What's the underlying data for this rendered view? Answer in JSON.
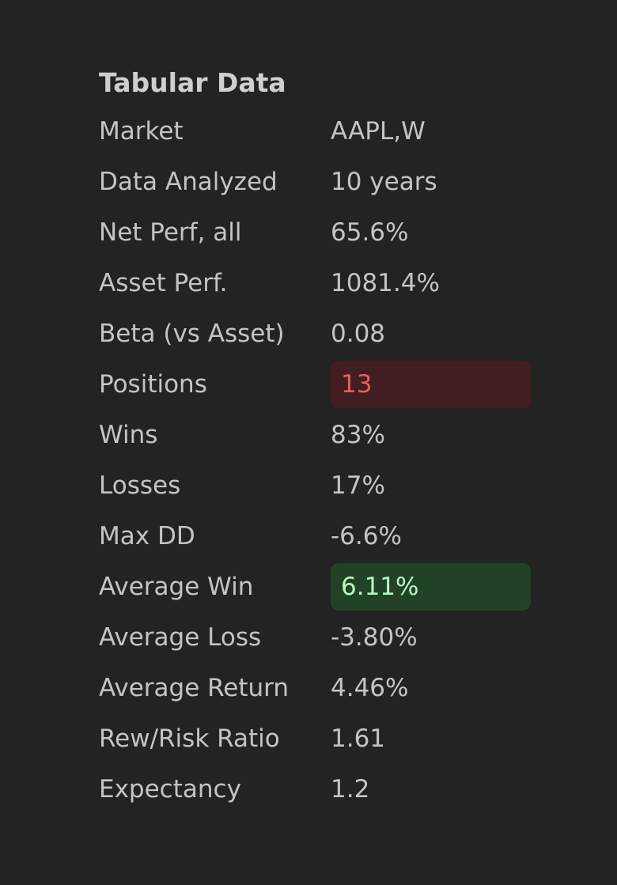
{
  "colors": {
    "background": "#232323",
    "text": "#c4c4c4",
    "badge_red_bg": "#421e22",
    "badge_red_text": "#ea5c5c",
    "badge_green_bg": "#214226",
    "badge_green_text": "#b9f5bf"
  },
  "table": {
    "title": "Tabular Data",
    "rows": [
      {
        "label": "Market",
        "value": "AAPL,W"
      },
      {
        "label": "Data Analyzed",
        "value": "10 years"
      },
      {
        "label": "Net Perf, all",
        "value": "65.6%"
      },
      {
        "label": "Asset Perf.",
        "value": "1081.4%"
      },
      {
        "label": "Beta (vs Asset)",
        "value": "0.08"
      },
      {
        "label": "Positions",
        "value": "13",
        "highlight": "red"
      },
      {
        "label": "Wins",
        "value": "83%"
      },
      {
        "label": "Losses",
        "value": "17%"
      },
      {
        "label": "Max DD",
        "value": "-6.6%"
      },
      {
        "label": "Average Win",
        "value": "6.11%",
        "highlight": "green"
      },
      {
        "label": "Average Loss",
        "value": "-3.80%"
      },
      {
        "label": "Average Return",
        "value": "4.46%"
      },
      {
        "label": "Rew/Risk Ratio",
        "value": "1.61"
      },
      {
        "label": "Expectancy",
        "value": "1.2"
      }
    ]
  }
}
